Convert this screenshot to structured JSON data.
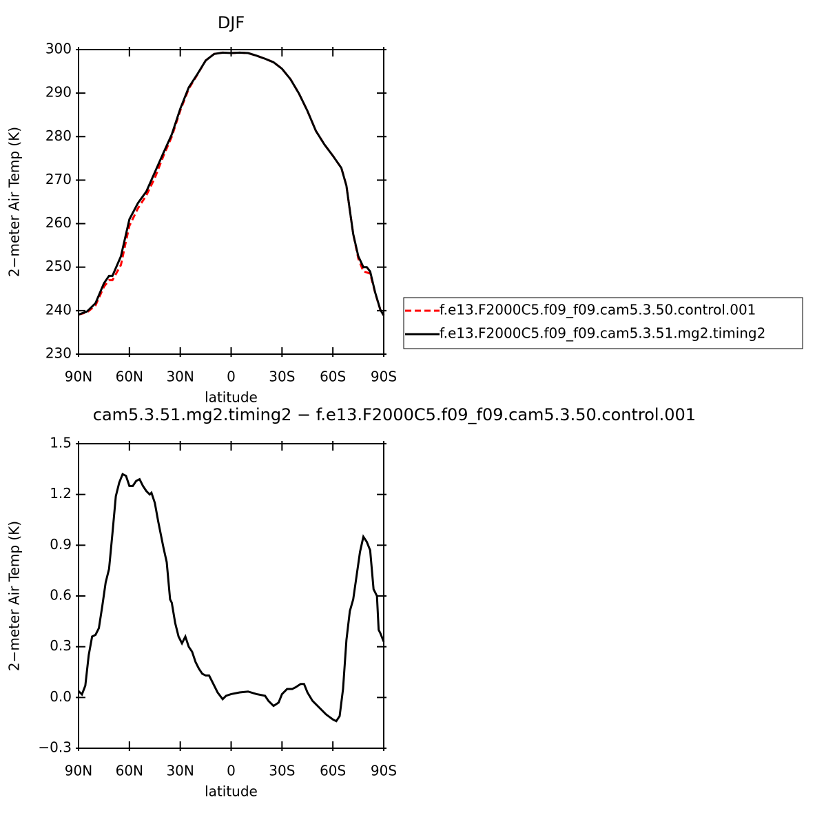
{
  "chart_data": [
    {
      "type": "line",
      "title": "DJF",
      "xlabel": "latitude",
      "ylabel": "2−meter Air Temp (K)",
      "x": [
        90,
        85,
        80,
        75,
        72,
        70,
        65,
        62,
        60,
        55,
        50,
        45,
        40,
        35,
        30,
        25,
        20,
        15,
        10,
        5,
        0,
        -5,
        -10,
        -15,
        -20,
        -25,
        -30,
        -35,
        -40,
        -45,
        -50,
        -55,
        -60,
        -65,
        -68,
        -70,
        -72,
        -75,
        -78,
        -80,
        -82,
        -85,
        -88,
        -90
      ],
      "series": [
        {
          "name": "f.e13.F2000C5.f09_f09.cam5.3.50.control.001",
          "color": "#ff0000",
          "linestyle": "dashed",
          "values": [
            239.1,
            239.6,
            241.2,
            245.5,
            247,
            247,
            250.5,
            256,
            259.5,
            263.5,
            266.5,
            270.5,
            275.5,
            280,
            286,
            291,
            294.2,
            297.5,
            299,
            299.3,
            299.2,
            299.3,
            299.2,
            298.6,
            297.9,
            297.1,
            295.6,
            293.2,
            289.9,
            285.9,
            281.3,
            278.2,
            275.6,
            272.8,
            268.7,
            263.1,
            257.6,
            252,
            249,
            248.8,
            248.5,
            244,
            240.2,
            238.9
          ]
        },
        {
          "name": "f.e13.F2000C5.f09_f09.cam5.3.51.mg2.timing2",
          "color": "#000000",
          "linestyle": "solid",
          "values": [
            239.1,
            239.8,
            241.7,
            246.3,
            248,
            248,
            252.5,
            257.6,
            261,
            264.7,
            267.4,
            271.8,
            276.2,
            280.5,
            286.4,
            291.3,
            294.3,
            297.5,
            299,
            299.3,
            299.2,
            299.3,
            299.2,
            298.6,
            297.9,
            297.1,
            295.6,
            293.2,
            289.9,
            285.9,
            281.3,
            278.2,
            275.6,
            272.8,
            268.7,
            263.1,
            257.6,
            252.5,
            250,
            250,
            249,
            244.1,
            240.2,
            238.9
          ]
        }
      ],
      "xlim": [
        90,
        -90
      ],
      "xticks": [
        {
          "value": 90,
          "label": "90N"
        },
        {
          "value": 60,
          "label": "60N"
        },
        {
          "value": 30,
          "label": "30N"
        },
        0,
        {
          "value": -30,
          "label": "30S"
        },
        {
          "value": -60,
          "label": "60S"
        },
        {
          "value": -90,
          "label": "90S"
        }
      ],
      "ylim": [
        230,
        300
      ],
      "yticks": [
        230,
        240,
        250,
        260,
        270,
        280,
        290,
        300
      ],
      "legend": "right"
    },
    {
      "type": "line",
      "title": "cam5.3.51.mg2.timing2 − f.e13.F2000C5.f09_f09.cam5.3.50.control.001",
      "xlabel": "latitude",
      "ylabel": "2−meter Air Temp (K)",
      "x": [
        90,
        88,
        86,
        84,
        82,
        80,
        78,
        76,
        74,
        72,
        70,
        68,
        66,
        64,
        62,
        60,
        58,
        56,
        54,
        52,
        50,
        48,
        47,
        45,
        43,
        40,
        38,
        36,
        35,
        33,
        31,
        29,
        27,
        25,
        23,
        21,
        19,
        17,
        15,
        13,
        11,
        8,
        5,
        3,
        0,
        -5,
        -10,
        -15,
        -20,
        -22,
        -25,
        -28,
        -30,
        -33,
        -36,
        -38,
        -41,
        -43,
        -45,
        -48,
        -52,
        -56,
        -60,
        -62,
        -64,
        -66,
        -68,
        -70,
        -72,
        -74,
        -76,
        -78,
        -80,
        -82,
        -84,
        -86,
        -87,
        -88,
        -90
      ],
      "series": [
        {
          "color": "#000000",
          "linestyle": "solid",
          "values": [
            0.038,
            0.018,
            0.07,
            0.25,
            0.36,
            0.37,
            0.41,
            0.54,
            0.68,
            0.76,
            0.97,
            1.19,
            1.27,
            1.32,
            1.31,
            1.25,
            1.25,
            1.28,
            1.29,
            1.25,
            1.22,
            1.2,
            1.21,
            1.15,
            1.04,
            0.89,
            0.8,
            0.58,
            0.56,
            0.44,
            0.36,
            0.32,
            0.36,
            0.3,
            0.27,
            0.21,
            0.17,
            0.14,
            0.13,
            0.13,
            0.09,
            0.03,
            -0.01,
            0.01,
            0.02,
            0.03,
            0.035,
            0.02,
            0.01,
            -0.02,
            -0.05,
            -0.03,
            0.02,
            0.05,
            0.05,
            0.06,
            0.08,
            0.08,
            0.03,
            -0.02,
            -0.06,
            -0.1,
            -0.13,
            -0.14,
            -0.11,
            0.05,
            0.34,
            0.51,
            0.58,
            0.72,
            0.86,
            0.95,
            0.92,
            0.87,
            0.64,
            0.6,
            0.4,
            0.38,
            0.33
          ]
        }
      ],
      "xlim": [
        90,
        -90
      ],
      "xticks": [
        {
          "value": 90,
          "label": "90N"
        },
        {
          "value": 60,
          "label": "60N"
        },
        {
          "value": 30,
          "label": "30N"
        },
        0,
        {
          "value": -30,
          "label": "30S"
        },
        {
          "value": -60,
          "label": "60S"
        },
        {
          "value": -90,
          "label": "90S"
        }
      ],
      "ylim": [
        -0.3,
        1.5
      ],
      "yticks": [
        {
          "value": -0.3,
          "label": "−0.3"
        },
        {
          "value": 0,
          "label": "0.0"
        },
        0.3,
        0.6,
        0.9,
        1.2,
        1.5
      ]
    }
  ]
}
